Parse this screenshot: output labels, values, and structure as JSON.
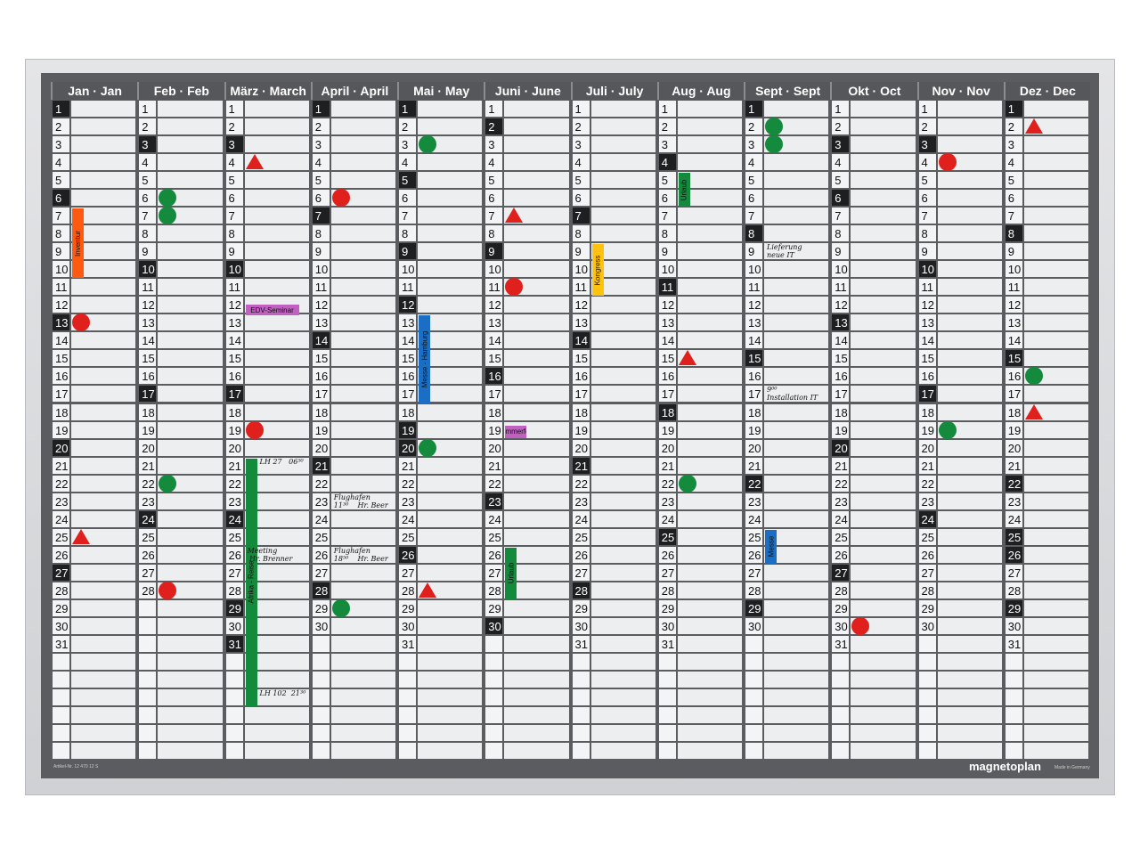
{
  "months": [
    {
      "label": "Jan · Jan",
      "days": 31,
      "dark": [
        1,
        6,
        13,
        20,
        27
      ]
    },
    {
      "label": "Feb · Feb",
      "days": 28,
      "dark": [
        3,
        10,
        17,
        24
      ]
    },
    {
      "label": "März · March",
      "days": 31,
      "dark": [
        3,
        10,
        17,
        24,
        29,
        31
      ]
    },
    {
      "label": "April · April",
      "days": 30,
      "dark": [
        1,
        7,
        14,
        21,
        28
      ]
    },
    {
      "label": "Mai · May",
      "days": 31,
      "dark": [
        1,
        5,
        9,
        12,
        19,
        20,
        26
      ]
    },
    {
      "label": "Juni · June",
      "days": 30,
      "dark": [
        2,
        9,
        16,
        23,
        30
      ]
    },
    {
      "label": "Juli · July",
      "days": 31,
      "dark": [
        7,
        14,
        21,
        28
      ]
    },
    {
      "label": "Aug · Aug",
      "days": 31,
      "dark": [
        4,
        11,
        18,
        25
      ]
    },
    {
      "label": "Sept · Sept",
      "days": 30,
      "dark": [
        1,
        8,
        15,
        22,
        29
      ]
    },
    {
      "label": "Okt · Oct",
      "days": 31,
      "dark": [
        3,
        6,
        13,
        20,
        27
      ]
    },
    {
      "label": "Nov · Nov",
      "days": 30,
      "dark": [
        3,
        10,
        17,
        24
      ]
    },
    {
      "label": "Dez · Dec",
      "days": 31,
      "dark": [
        1,
        8,
        15,
        22,
        25,
        26,
        29
      ]
    }
  ],
  "magnets": [
    {
      "month": 1,
      "day": 13,
      "shape": "circle",
      "color": "#e0201c"
    },
    {
      "month": 1,
      "day": 25,
      "shape": "triangle",
      "color": "#e0201c"
    },
    {
      "month": 2,
      "day": 6,
      "shape": "circle",
      "color": "#138a3c"
    },
    {
      "month": 2,
      "day": 7,
      "shape": "circle",
      "color": "#138a3c"
    },
    {
      "month": 2,
      "day": 22,
      "shape": "circle",
      "color": "#138a3c"
    },
    {
      "month": 2,
      "day": 28,
      "shape": "circle",
      "color": "#e0201c"
    },
    {
      "month": 3,
      "day": 4,
      "shape": "triangle",
      "color": "#e0201c"
    },
    {
      "month": 3,
      "day": 19,
      "shape": "circle",
      "color": "#e0201c"
    },
    {
      "month": 4,
      "day": 6,
      "shape": "circle",
      "color": "#e0201c"
    },
    {
      "month": 4,
      "day": 29,
      "shape": "circle",
      "color": "#138a3c"
    },
    {
      "month": 5,
      "day": 3,
      "shape": "circle",
      "color": "#138a3c"
    },
    {
      "month": 5,
      "day": 20,
      "shape": "circle",
      "color": "#138a3c"
    },
    {
      "month": 5,
      "day": 28,
      "shape": "triangle",
      "color": "#e0201c"
    },
    {
      "month": 6,
      "day": 7,
      "shape": "triangle",
      "color": "#e0201c"
    },
    {
      "month": 6,
      "day": 11,
      "shape": "circle",
      "color": "#e0201c"
    },
    {
      "month": 8,
      "day": 15,
      "shape": "triangle",
      "color": "#e0201c"
    },
    {
      "month": 8,
      "day": 22,
      "shape": "circle",
      "color": "#138a3c"
    },
    {
      "month": 9,
      "day": 2,
      "shape": "circle",
      "color": "#138a3c"
    },
    {
      "month": 9,
      "day": 3,
      "shape": "circle",
      "color": "#138a3c"
    },
    {
      "month": 10,
      "day": 30,
      "shape": "circle",
      "color": "#e0201c"
    },
    {
      "month": 11,
      "day": 4,
      "shape": "circle",
      "color": "#e0201c"
    },
    {
      "month": 11,
      "day": 19,
      "shape": "circle",
      "color": "#138a3c"
    },
    {
      "month": 12,
      "day": 2,
      "shape": "triangle",
      "color": "#e0201c"
    },
    {
      "month": 12,
      "day": 16,
      "shape": "circle",
      "color": "#138a3c"
    },
    {
      "month": 12,
      "day": 18,
      "shape": "triangle",
      "color": "#e0201c"
    }
  ],
  "strips": [
    {
      "text": "Inventur",
      "month": 1,
      "from": 7,
      "to": 10,
      "color": "#ff5a10",
      "vertical": true
    },
    {
      "text": "EDV-Seminar",
      "month": 3,
      "from": 12,
      "to": 12,
      "color": "#c060c0",
      "vertical": false
    },
    {
      "text": "Messe - Hamburg",
      "month": 5,
      "from": 13,
      "to": 17,
      "color": "#1a6fc4",
      "vertical": true
    },
    {
      "text": "Sommerfest",
      "month": 6,
      "from": 19,
      "to": 19,
      "color": "#c060c0",
      "vertical": false
    },
    {
      "text": "Kongress",
      "month": 7,
      "from": 9,
      "to": 11,
      "color": "#ffc20e",
      "vertical": true
    },
    {
      "text": "Urlaub",
      "month": 8,
      "from": 5,
      "to": 6,
      "color": "#138a3c",
      "vertical": true
    },
    {
      "text": "Urlaub",
      "month": 6,
      "from": 26,
      "to": 28,
      "color": "#138a3c",
      "vertical": true
    },
    {
      "text": "Afrika - Reise",
      "month": 3,
      "from": 21,
      "to": 34,
      "color": "#138a3c",
      "vertical": true
    },
    {
      "text": "Messe",
      "month": 9,
      "from": 25,
      "to": 26,
      "color": "#1a6fc4",
      "vertical": true
    }
  ],
  "notes": [
    {
      "month": 3,
      "row": 21,
      "text": "LH 27   06⁵⁰"
    },
    {
      "month": 3,
      "row": 26,
      "text": "Meeting\n Hr. Brenner"
    },
    {
      "month": 4,
      "row": 23,
      "text": "Flughafen\n11³⁰    Hr. Beer"
    },
    {
      "month": 4,
      "row": 26,
      "text": "Flughafen\n18⁵⁰    Hr. Beer"
    },
    {
      "month": 9,
      "row": 9,
      "text": "Lieferung\nneue IT"
    },
    {
      "month": 9,
      "row": 17,
      "text": "9⁰⁰\nInstallation IT"
    },
    {
      "month": 3,
      "row": 34,
      "text": "LH 102  21³⁰"
    }
  ],
  "footer": {
    "article": "Artikel-Nr. 12 470 12 S",
    "brand": "magnetoplan",
    "made": "Made in Germany"
  }
}
